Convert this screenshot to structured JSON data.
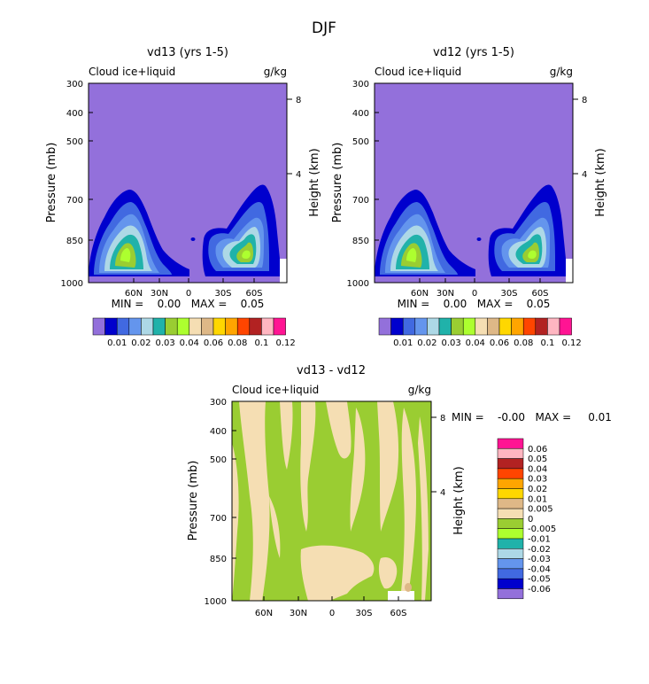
{
  "figure": {
    "title": "DJF"
  },
  "chart_data": [
    {
      "type": "heatmap",
      "title": "vd13 (yrs 1-5)",
      "subtitle_left": "Cloud ice+liquid",
      "subtitle_right": "g/kg",
      "ylabel": "Pressure (mb)",
      "y2label": "Height (km)",
      "y_ticks": [
        "300",
        "400",
        "500",
        "700",
        "850",
        "1000"
      ],
      "y2_ticks": [
        "8",
        "4"
      ],
      "x_ticks": [
        "60N",
        "30N",
        "0",
        "30S",
        "60S"
      ],
      "stats_text": "MIN =    0.00   MAX =    0.05",
      "min": 0.0,
      "max": 0.05,
      "colorbar": {
        "orientation": "horizontal",
        "labels": [
          "0.01",
          "0.02",
          "0.03",
          "0.04",
          "0.06",
          "0.08",
          "0.1",
          "0.12"
        ],
        "colors": [
          "#9370db",
          "#0000cd",
          "#4169e1",
          "#6495ed",
          "#add8e6",
          "#20b2aa",
          "#9acd32",
          "#adff2f",
          "#f5deb3",
          "#deb887",
          "#ffd700",
          "#ffa500",
          "#ff4500",
          "#b22222",
          "#ffb6c1",
          "#ff1493"
        ]
      },
      "features": [
        {
          "name": "northern-hemisphere-cloud-max",
          "lat": 55,
          "pressure_mb": 850,
          "peak_value": 0.05
        },
        {
          "name": "southern-hemisphere-cloud-max",
          "lat": -60,
          "pressure_mb": 850,
          "peak_value": 0.05
        }
      ]
    },
    {
      "type": "heatmap",
      "title": "vd12 (yrs 1-5)",
      "subtitle_left": "Cloud ice+liquid",
      "subtitle_right": "g/kg",
      "ylabel": "Pressure (mb)",
      "y2label": "Height (km)",
      "y_ticks": [
        "300",
        "400",
        "500",
        "700",
        "850",
        "1000"
      ],
      "y2_ticks": [
        "8",
        "4"
      ],
      "x_ticks": [
        "60N",
        "30N",
        "0",
        "30S",
        "60S"
      ],
      "stats_text": "MIN =    0.00   MAX =    0.05",
      "min": 0.0,
      "max": 0.05,
      "colorbar": {
        "orientation": "horizontal",
        "labels": [
          "0.01",
          "0.02",
          "0.03",
          "0.04",
          "0.06",
          "0.08",
          "0.1",
          "0.12"
        ],
        "colors": [
          "#9370db",
          "#0000cd",
          "#4169e1",
          "#6495ed",
          "#add8e6",
          "#20b2aa",
          "#9acd32",
          "#adff2f",
          "#f5deb3",
          "#deb887",
          "#ffd700",
          "#ffa500",
          "#ff4500",
          "#b22222",
          "#ffb6c1",
          "#ff1493"
        ]
      },
      "features": [
        {
          "name": "northern-hemisphere-cloud-max",
          "lat": 55,
          "pressure_mb": 850,
          "peak_value": 0.05
        },
        {
          "name": "southern-hemisphere-cloud-max",
          "lat": -60,
          "pressure_mb": 850,
          "peak_value": 0.05
        }
      ]
    },
    {
      "type": "heatmap",
      "title": "vd13 - vd12",
      "subtitle_left": "Cloud ice+liquid",
      "subtitle_right": "g/kg",
      "ylabel": "Pressure (mb)",
      "y2label": "Height (km)",
      "y_ticks": [
        "300",
        "400",
        "500",
        "700",
        "850",
        "1000"
      ],
      "y2_ticks": [
        "8",
        "4"
      ],
      "x_ticks": [
        "60N",
        "30N",
        "0",
        "30S",
        "60S"
      ],
      "stats_text": "MIN =    -0.00   MAX =     0.01",
      "min": -0.0,
      "max": 0.01,
      "colorbar": {
        "orientation": "vertical",
        "labels": [
          "0.06",
          "0.05",
          "0.04",
          "0.03",
          "0.02",
          "0.01",
          "0.005",
          "0",
          "-0.005",
          "-0.01",
          "-0.02",
          "-0.03",
          "-0.04",
          "-0.05",
          "-0.06"
        ],
        "colors": [
          "#ff1493",
          "#ffb6c1",
          "#b22222",
          "#ff4500",
          "#ffa500",
          "#ffd700",
          "#deb887",
          "#f5deb3",
          "#9acd32",
          "#adff2f",
          "#20b2aa",
          "#add8e6",
          "#6495ed",
          "#4169e1",
          "#0000cd",
          "#9370db"
        ]
      },
      "pattern": "noisy alternation of 0 to 0.005 (tan) and -0.005 to 0 (green) bands"
    }
  ]
}
